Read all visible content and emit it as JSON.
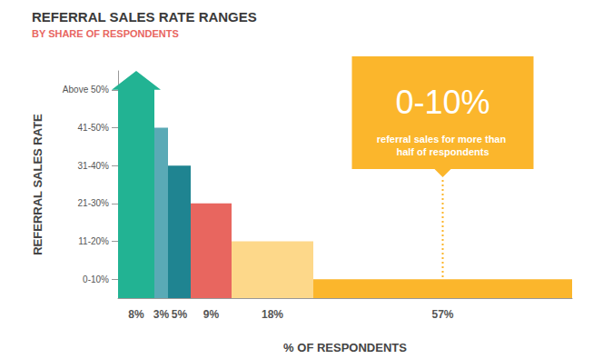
{
  "chart_data": {
    "type": "bar",
    "title": "REFERRAL SALES RATE RANGES",
    "subtitle": "BY SHARE OF RESPONDENTS",
    "y_label": "REFERRAL SALES RATE",
    "x_label": "% OF RESPONDENTS",
    "categories": [
      "Above 50%",
      "41-50%",
      "31-40%",
      "21-30%",
      "11-20%",
      "0-10%"
    ],
    "values": [
      8,
      3,
      5,
      9,
      18,
      57
    ],
    "value_labels": [
      "8%",
      "3%",
      "5%",
      "9%",
      "18%",
      "57%"
    ],
    "data_labels": true,
    "colors": [
      "#22b393",
      "#5aaab6",
      "#1f8491",
      "#e8665f",
      "#fdd88a",
      "#fbb62c"
    ],
    "xlim": [
      0,
      100
    ],
    "xticks": [],
    "tick_labels": "y",
    "grid": false,
    "annotation": {
      "title": "0-10%",
      "text": "referral sales for more than half of respondents"
    }
  }
}
